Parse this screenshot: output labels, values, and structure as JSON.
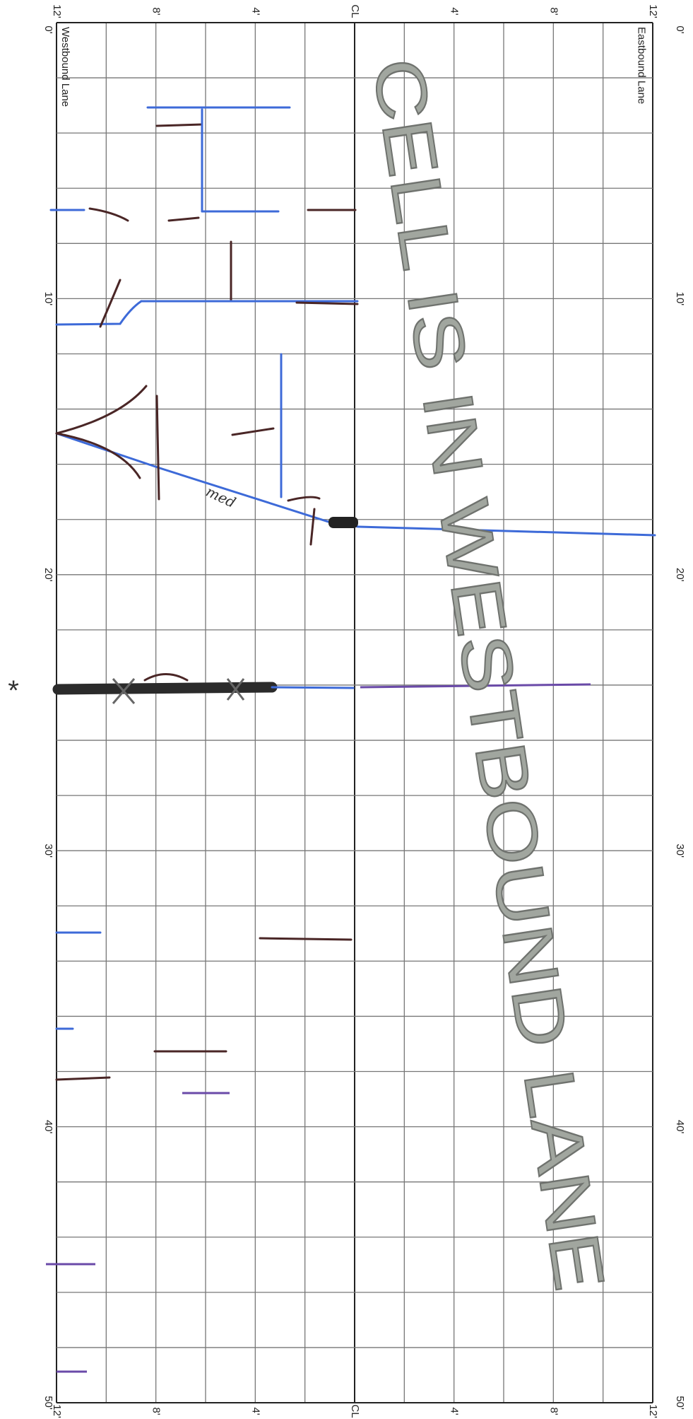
{
  "header": {
    "lane_left": "Westbound Lane",
    "lane_right": "Eastbound Lane"
  },
  "top_scale": [
    "12'",
    "8'",
    "4'",
    "CL",
    "4'",
    "8'",
    "12'"
  ],
  "bottom_scale": [
    "12'",
    "8'",
    "4'",
    "CL",
    "4'",
    "8'",
    "12'"
  ],
  "left_scale": [
    "0'",
    "10'",
    "20'",
    "30'",
    "40'",
    "50'"
  ],
  "right_scale": [
    "0'",
    "10'",
    "20'",
    "30'",
    "40'",
    "50'"
  ],
  "stamp": "CELL IS IN WESTBOUND LANE",
  "annotations": {
    "note": "med",
    "mark": "*"
  }
}
